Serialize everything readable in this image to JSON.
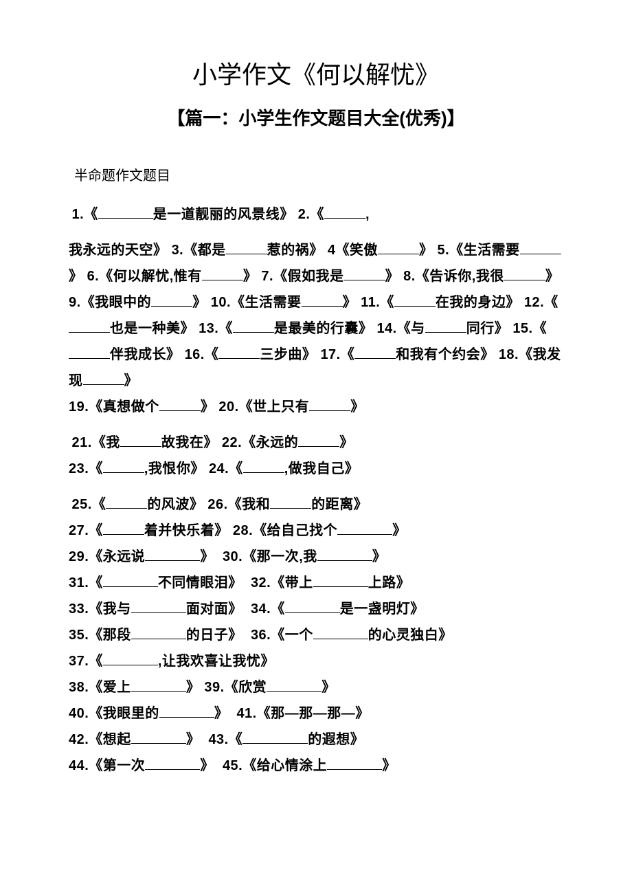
{
  "document": {
    "title": "小学作文《何以解忧》",
    "subtitle": "【篇一：小学生作文题目大全(优秀)】",
    "section_label": "半命题作文题目",
    "background_color": "#ffffff",
    "text_color": "#000000",
    "title_fontsize": 36,
    "subtitle_fontsize": 26,
    "body_fontsize": 20,
    "line_height": 1.9
  },
  "p1": {
    "n1": "1.",
    "t1a": "《",
    "t1b": "是一道靓丽的风景线》",
    "n2": "2.",
    "t2": "《",
    "t2b": ","
  },
  "p2": {
    "t_start": "我永远的天空》",
    "n3": "3.",
    "t3a": "《都是",
    "t3b": "惹的祸》",
    "n4": "4",
    "t4a": "《笑傲",
    "t4b": "》",
    "n5": "5.",
    "t5a": "《生活需要",
    "t5b": "》",
    "n6": "6.",
    "t6a": "《何以解忧,惟有",
    "t6b": "》",
    "n7": "7.",
    "t7a": "《假如我是",
    "t7b": "》",
    "n8": "8.",
    "t8a": "《告诉你,我很",
    "t8b": "》",
    "n9": "9.",
    "t9a": "《我眼中的",
    "t9b": "》",
    "n10": "10.",
    "t10a": "《生活需要",
    "t10b": "》",
    "n11": "11.",
    "t11a": "《",
    "t11b": "在我的身边》",
    "n12": "12.",
    "t12a": "《",
    "t12b": "也是一种美》",
    "n13": "13.",
    "t13a": "《",
    "t13b": "是最美的行囊》",
    "n14": "14.",
    "t14a": "《与",
    "t14b": "同行》",
    "n15": "15.",
    "t15a": "《",
    "t15b": "伴我成长》",
    "n16": "16.",
    "t16a": "《",
    "t16b": "三步曲》",
    "n17": "17.",
    "t17a": "《",
    "t17b": "和我有个约会》",
    "n18": "18.",
    "t18a": "《我发现",
    "t18b": "》",
    "n19": "19.",
    "t19a": "《真想做个",
    "t19b": "》",
    "n20": "20.",
    "t20a": "《世上只有",
    "t20b": "》"
  },
  "p3": {
    "n21": "21.",
    "t21a": "《我",
    "t21b": "故我在》",
    "n22": "22.",
    "t22a": "《永远的",
    "t22b": "》",
    "n23": "23.",
    "t23a": "《",
    "t23b": ",我恨你》",
    "n24": "24.",
    "t24a": "《",
    "t24b": ",做我自己》"
  },
  "p4": {
    "n25": "25.",
    "t25a": "《",
    "t25b": "的风波》",
    "n26": "26.",
    "t26a": "《我和",
    "t26b": "的距离》",
    "n27": "27.",
    "t27a": "《",
    "t27b": "着并快乐着》",
    "n28": "28.",
    "t28a": "《给自己找个",
    "t28b": "》",
    "n29": "29.",
    "t29a": "《永远说",
    "t29b": "》",
    "n30": "30.",
    "t30a": "《那一次,我",
    "t30b": "》",
    "n31": "31.",
    "t31a": "《",
    "t31b": "不同情眼泪》",
    "n32": "32.",
    "t32a": "《带上",
    "t32b": "上路》",
    "n33": "33.",
    "t33a": "《我与",
    "t33b": "面对面》",
    "n34": "34.",
    "t34a": "《",
    "t34b": "是一盏明灯》",
    "n35": "35.",
    "t35a": "《那段",
    "t35b": "的日子》",
    "n36": "36.",
    "t36a": "《一个",
    "t36b": "的心灵独白》",
    "n37": "37.",
    "t37a": "《",
    "t37b": ",让我欢喜让我忧》",
    "n38": "38.",
    "t38a": "《爱上",
    "t38b": "》",
    "n39": "39.",
    "t39a": "《欣赏",
    "t39b": "》",
    "n40": "40.",
    "t40a": "《我眼里的",
    "t40b": "》",
    "n41": "41.",
    "t41": "《那—那—那—》",
    "n42": "42.",
    "t42a": "《想起",
    "t42b": "》",
    "n43": "43.",
    "t43a": "《",
    "t43b": "的遐想》",
    "n44": "44.",
    "t44a": "《第一次",
    "t44b": "》",
    "n45": "45.",
    "t45a": "《给心情涂上",
    "t45b": "》"
  }
}
